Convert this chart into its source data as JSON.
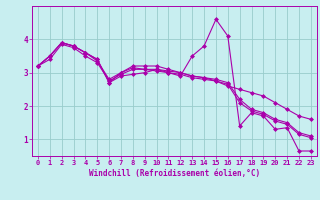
{
  "xlabel": "Windchill (Refroidissement éolien,°C)",
  "background_color": "#c8eef0",
  "line_color": "#aa00aa",
  "grid_color": "#99cccc",
  "hours": [
    0,
    1,
    2,
    3,
    4,
    5,
    6,
    7,
    8,
    9,
    10,
    11,
    12,
    13,
    14,
    15,
    16,
    17,
    18,
    19,
    20,
    21,
    22,
    23
  ],
  "series1": [
    3.2,
    3.5,
    3.9,
    3.8,
    3.6,
    3.4,
    2.7,
    2.9,
    2.95,
    3.0,
    3.1,
    3.0,
    2.9,
    3.5,
    3.8,
    4.6,
    4.1,
    1.4,
    1.8,
    1.7,
    1.3,
    1.35,
    0.65,
    0.65
  ],
  "series2": [
    3.2,
    3.5,
    3.9,
    3.8,
    3.6,
    3.4,
    2.7,
    3.0,
    3.2,
    3.2,
    3.2,
    3.1,
    3.0,
    2.9,
    2.85,
    2.75,
    2.6,
    2.5,
    2.4,
    2.3,
    2.1,
    1.9,
    1.7,
    1.6
  ],
  "series3": [
    3.2,
    3.5,
    3.9,
    3.8,
    3.6,
    3.35,
    2.8,
    3.0,
    3.15,
    3.1,
    3.1,
    3.05,
    3.0,
    2.9,
    2.85,
    2.8,
    2.7,
    2.2,
    1.9,
    1.8,
    1.6,
    1.5,
    1.2,
    1.1
  ],
  "series4": [
    3.2,
    3.4,
    3.85,
    3.75,
    3.5,
    3.3,
    2.75,
    2.95,
    3.1,
    3.1,
    3.05,
    3.0,
    2.95,
    2.85,
    2.8,
    2.75,
    2.65,
    2.1,
    1.85,
    1.75,
    1.55,
    1.45,
    1.15,
    1.05
  ],
  "ylim": [
    0.5,
    5.0
  ],
  "yticks": [
    1,
    2,
    3,
    4
  ],
  "xlim": [
    -0.5,
    23.5
  ],
  "marker": "D",
  "marker_size": 2.0,
  "line_width": 0.8,
  "tick_fontsize": 5.0,
  "xlabel_fontsize": 5.5
}
